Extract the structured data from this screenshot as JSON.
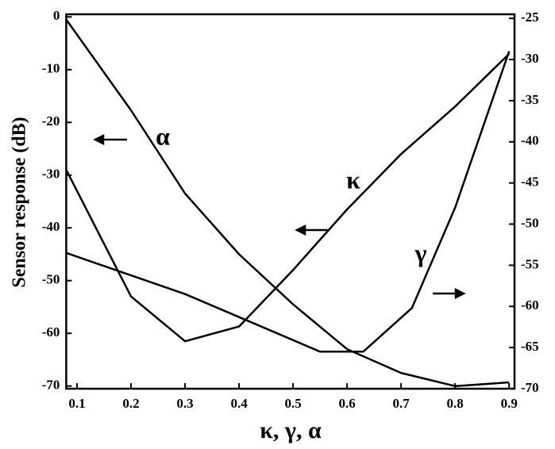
{
  "chart_data": {
    "type": "line",
    "ylabel": "Sensor response (dB)",
    "xlabel": "κ, γ, α",
    "xlim": [
      0.08,
      0.91
    ],
    "xticks": [
      0.1,
      0.2,
      0.3,
      0.4,
      0.5,
      0.6,
      0.7,
      0.8,
      0.9
    ],
    "ylim": [
      -70.5,
      0.5
    ],
    "yticks": [
      0,
      -10,
      -20,
      -30,
      -40,
      -50,
      -60,
      -70
    ],
    "y2lim": [
      -70,
      -24.5
    ],
    "y2ticks": [
      -25,
      -30,
      -35,
      -40,
      -45,
      -50,
      -55,
      -60,
      -65,
      -70
    ],
    "series": [
      {
        "name": "α",
        "color": "#000000",
        "x": [
          0.08,
          0.2,
          0.3,
          0.4,
          0.5,
          0.6,
          0.7,
          0.8,
          0.9
        ],
        "values": [
          -0.5,
          -17.7,
          -33.5,
          -45,
          -54.5,
          -63,
          -67.5,
          -70,
          -69.3
        ]
      },
      {
        "name": "κ",
        "color": "#000000",
        "x": [
          0.08,
          0.2,
          0.3,
          0.4,
          0.5,
          0.6,
          0.7,
          0.8,
          0.9
        ],
        "values": [
          -29,
          -53,
          -61.5,
          -58.7,
          -48,
          -36.5,
          -26,
          -17,
          -7
        ]
      },
      {
        "name": "γ",
        "color": "#000000",
        "axis": "y2",
        "x": [
          0.08,
          0.3,
          0.4,
          0.55,
          0.63,
          0.72,
          0.8,
          0.9
        ],
        "values": [
          -53.5,
          -58.5,
          -61.3,
          -65.5,
          -65.5,
          -60.2,
          -48,
          -29
        ]
      }
    ]
  }
}
